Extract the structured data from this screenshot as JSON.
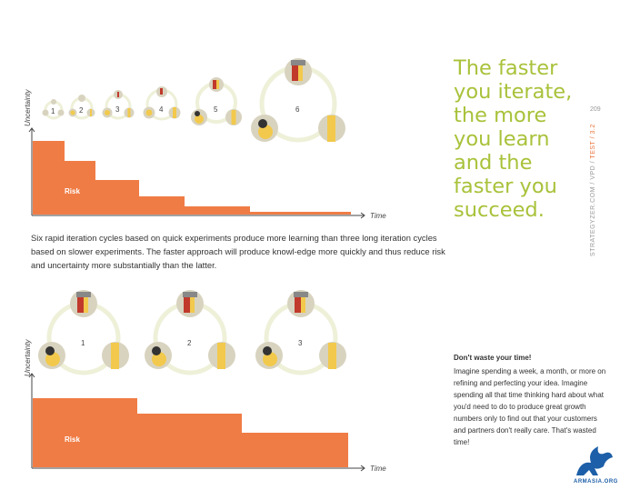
{
  "top_chart": {
    "y_axis_label": "Uncertainty",
    "x_axis_label": "Time",
    "risk_label": "Risk",
    "cycle_numbers": [
      "1",
      "2",
      "3",
      "4",
      "5",
      "6"
    ]
  },
  "caption": "Six rapid iteration cycles based on quick experiments produce more learning than three long iteration cycles based on slower experiments. The faster approach will produce knowl-edge more quickly and thus reduce risk and uncertainty more substantially than the latter.",
  "headline": "The faster you iterate, the more you learn and the faster you succeed.",
  "sidebar": {
    "prefix": "STRATEGYZER.COM / VPD / ",
    "highlight": "TEST / 3.2",
    "page_number": "209"
  },
  "bottom_chart": {
    "y_axis_label": "Uncertainty",
    "x_axis_label": "Time",
    "risk_label": "Risk",
    "cycle_numbers": [
      "1",
      "2",
      "3"
    ]
  },
  "note": {
    "title": "Don't waste your time!",
    "body": "Imagine spending a week, a month, or more on refining and perfecting your idea. Imagine spending all that time thinking hard about what you'd need to do to produce great growth numbers only to find out that your customers and partners don't really care. That's wasted time!"
  },
  "logo": {
    "text": "ARMASIA.ORG"
  },
  "chart_data": [
    {
      "type": "area",
      "title": "",
      "xlabel": "Time",
      "ylabel": "Uncertainty",
      "series": [
        {
          "name": "Risk",
          "values": [
            1.0,
            0.72,
            0.5,
            0.3,
            0.15,
            0.07,
            0.02
          ]
        }
      ]
    },
    {
      "type": "area",
      "title": "",
      "xlabel": "Time",
      "ylabel": "Uncertainty",
      "series": [
        {
          "name": "Risk",
          "values": [
            1.0,
            0.78,
            0.52,
            0.26
          ]
        }
      ]
    }
  ],
  "colors": {
    "risk_orange": "#f07c45",
    "headline_green": "#a8c23a",
    "cycle_ring": "#eef0d8",
    "ruler_yellow": "#f2c94c",
    "logo_blue": "#1d5fa8"
  }
}
